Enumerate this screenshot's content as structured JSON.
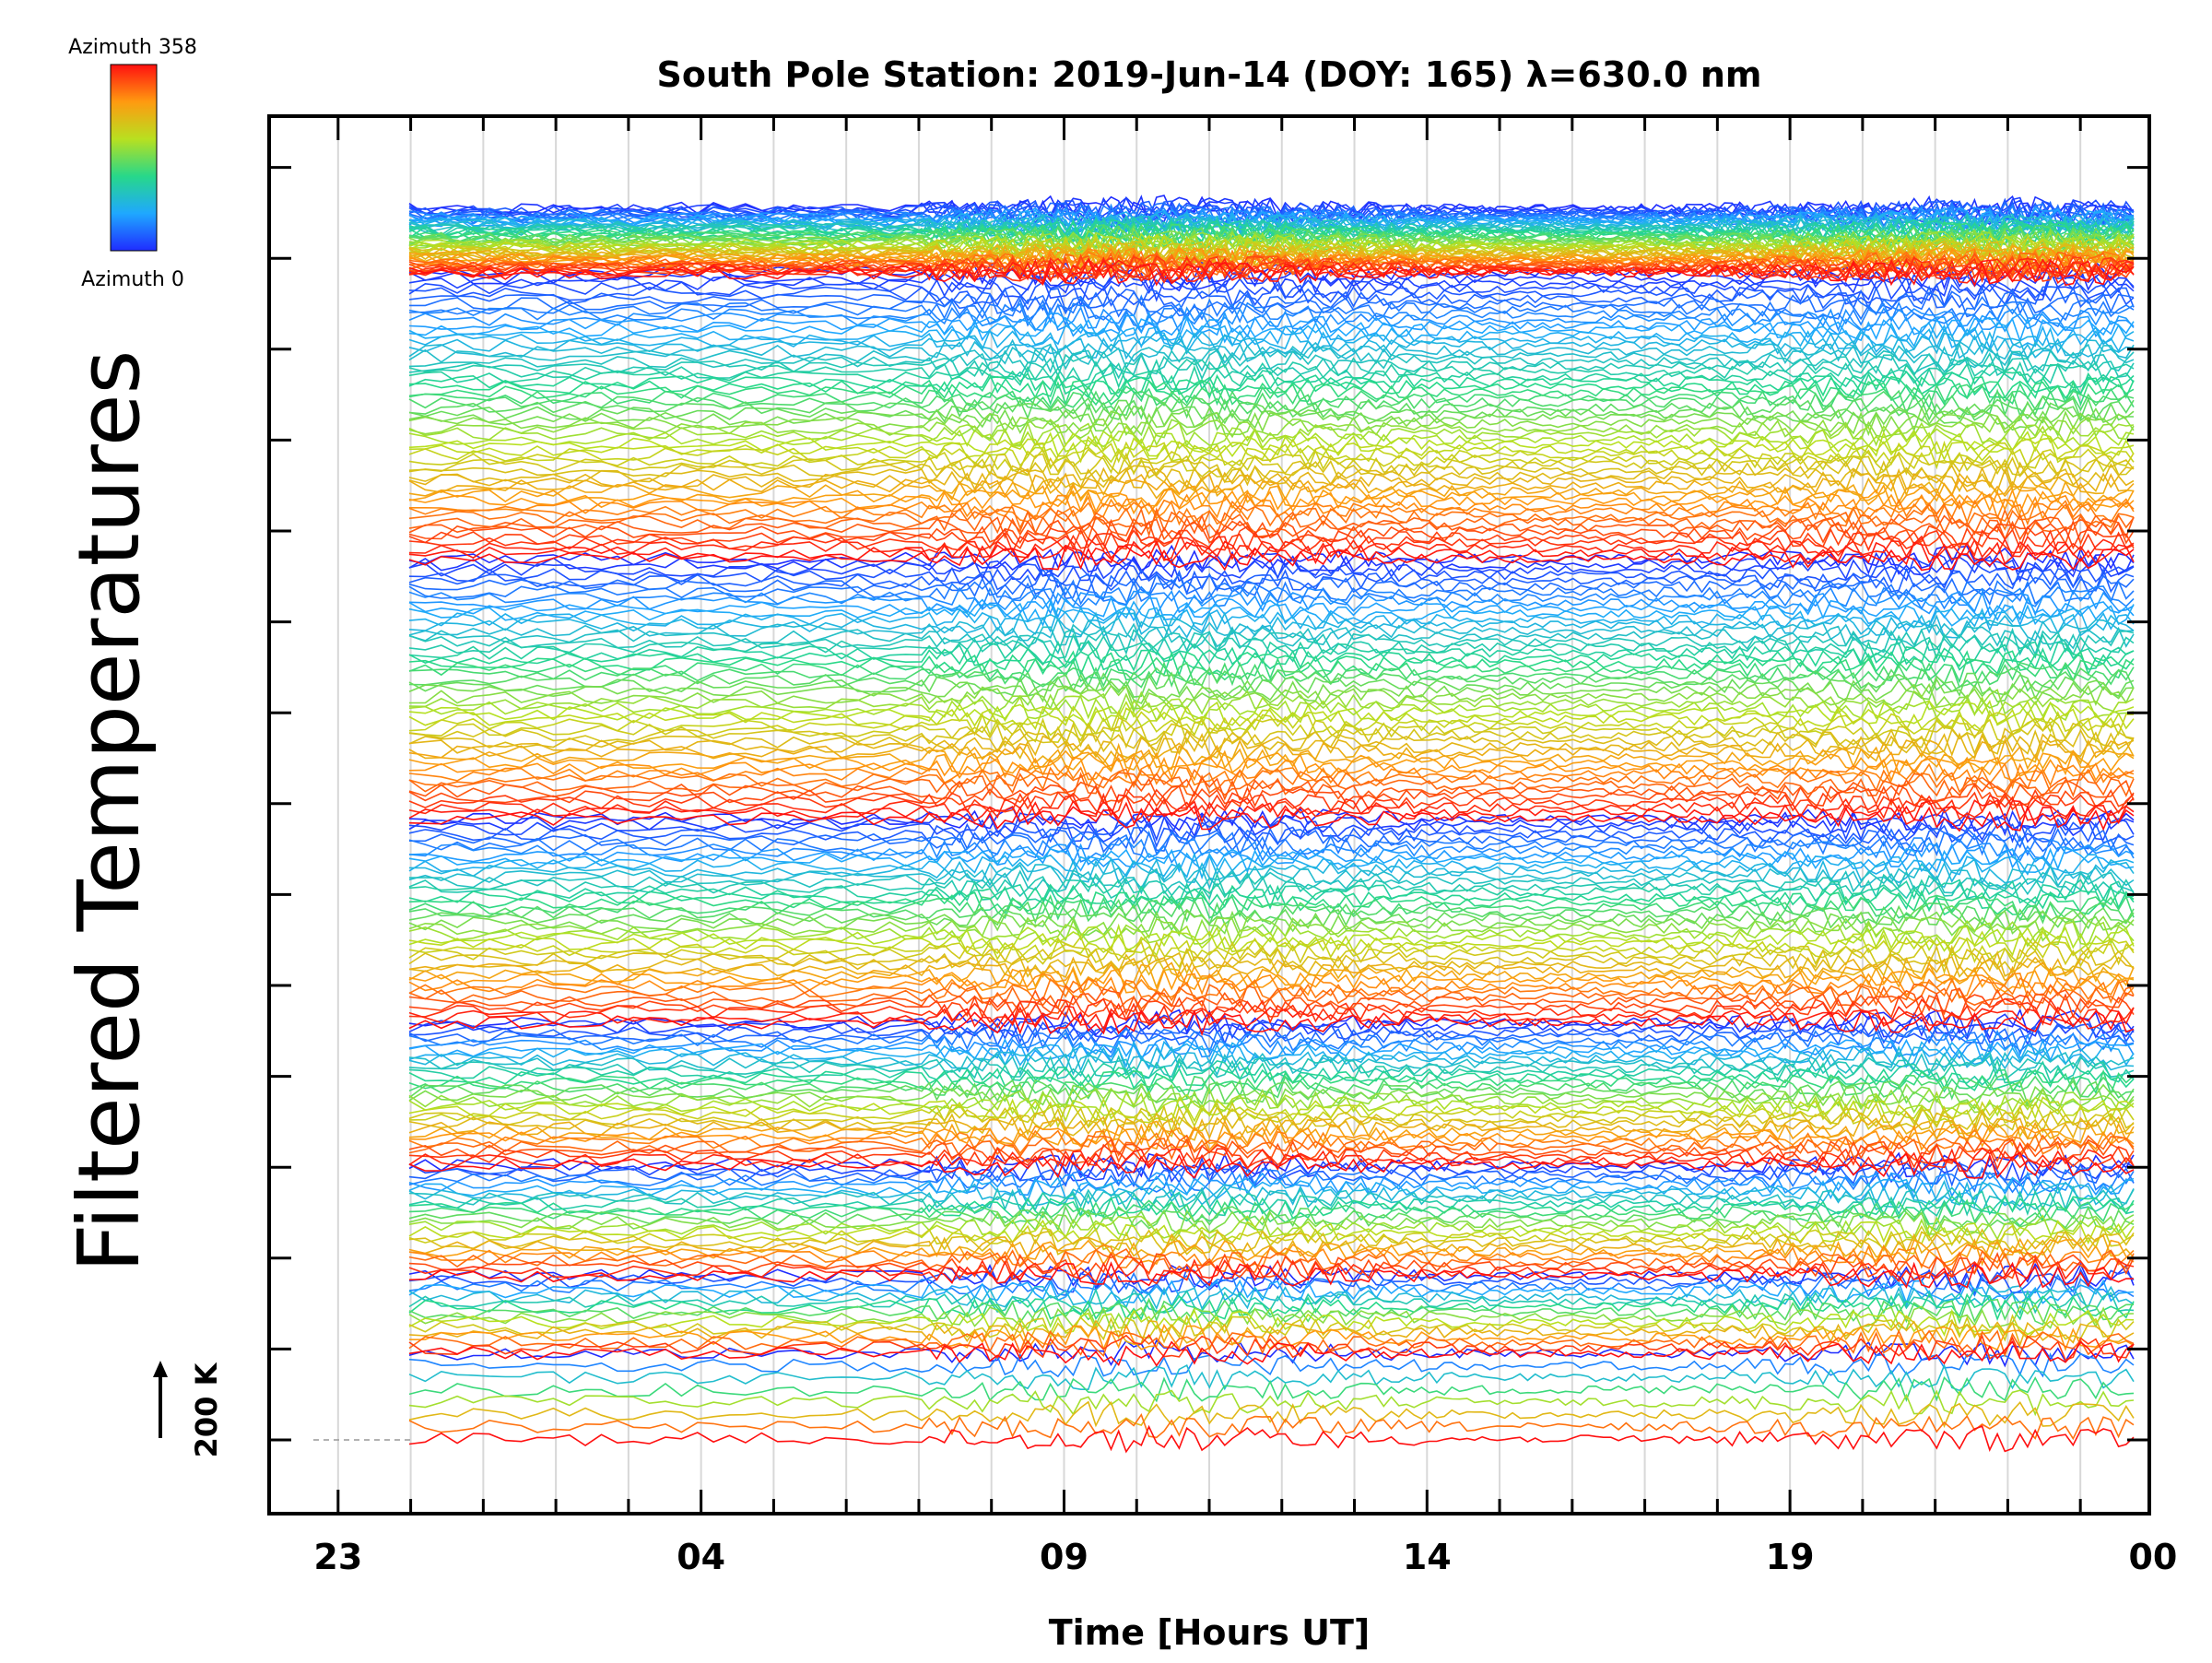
{
  "chart_data": {
    "type": "line",
    "title": "South Pole Station: 2019-Jun-14 (DOY: 165) λ=630.0 nm",
    "xlabel": "Time [Hours UT]",
    "ylabel": "Filtered Temperatures",
    "x_tick_labels": [
      "23",
      "04",
      "09",
      "14",
      "19",
      "00"
    ],
    "scale_bar_label": "200 K",
    "colorbar": {
      "max_label": "Azimuth 358",
      "min_label": "Azimuth 0"
    },
    "grid": true,
    "series_description": "Stacked filtered temperature time series, colored by azimuth (blue = 0° → red = 358°), repeating color cycles per zenith ring",
    "colors": {
      "low": "#1020e0",
      "mid": "#b8e020",
      "high": "#ff1010"
    }
  }
}
